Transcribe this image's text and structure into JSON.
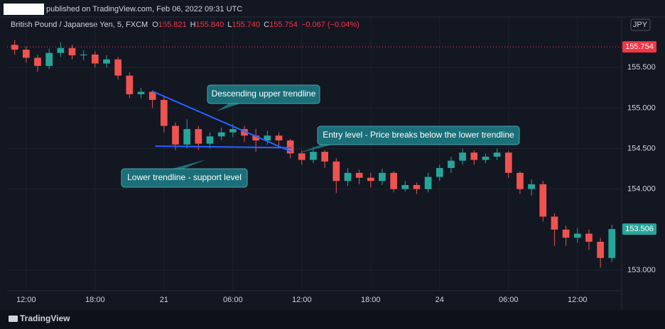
{
  "header": {
    "published": "published on TradingView.com, Feb 06, 2022 09:31 UTC",
    "symbol": "British Pound / Japanese Yen, 5, FXCM",
    "ohlc": [
      {
        "key": "O",
        "value": "155.821"
      },
      {
        "key": "H",
        "value": "155.840"
      },
      {
        "key": "L",
        "value": "155.740"
      },
      {
        "key": "C",
        "value": "155.754"
      }
    ],
    "change": "−0.067 (−0.04%)"
  },
  "footer": {
    "brand": "TradingView"
  },
  "chart_data": {
    "type": "candlestick",
    "currency": "JPY",
    "x": [
      -1,
      0,
      1,
      2,
      3,
      4,
      5,
      6,
      7,
      8,
      9,
      10,
      11,
      12,
      13,
      14,
      15,
      16,
      17,
      18,
      19,
      20,
      21,
      22,
      23,
      24,
      25,
      26,
      27,
      28,
      29,
      30,
      31,
      32,
      33,
      34,
      35,
      36,
      37,
      38,
      39,
      40,
      41,
      42,
      43,
      44,
      45,
      46,
      47,
      48,
      49,
      50,
      51
    ],
    "open": [
      155.78,
      155.72,
      155.62,
      155.52,
      155.68,
      155.74,
      155.65,
      155.66,
      155.55,
      155.6,
      155.4,
      155.17,
      155.2,
      155.1,
      154.78,
      154.55,
      154.74,
      154.56,
      154.65,
      154.7,
      154.74,
      154.66,
      154.6,
      154.66,
      154.6,
      154.44,
      154.36,
      154.46,
      154.34,
      154.1,
      154.2,
      154.14,
      154.1,
      154.2,
      154.0,
      154.05,
      154.0,
      154.15,
      154.26,
      154.35,
      154.45,
      154.36,
      154.4,
      154.45,
      154.2,
      154.0,
      154.06,
      153.66,
      153.5,
      153.4,
      153.45,
      153.35,
      153.15
    ],
    "high": [
      155.84,
      155.76,
      155.66,
      155.73,
      155.81,
      155.78,
      155.71,
      155.7,
      155.65,
      155.63,
      155.44,
      155.25,
      155.22,
      155.14,
      154.82,
      154.86,
      154.78,
      154.7,
      154.76,
      154.8,
      154.78,
      154.74,
      154.72,
      154.7,
      154.62,
      154.48,
      154.52,
      154.48,
      154.38,
      154.26,
      154.24,
      154.2,
      154.25,
      154.22,
      154.1,
      154.08,
      154.2,
      154.3,
      154.4,
      154.5,
      154.48,
      154.44,
      154.5,
      154.47,
      154.22,
      154.12,
      154.1,
      153.7,
      153.55,
      153.52,
      153.5,
      153.4,
      153.56
    ],
    "low": [
      155.66,
      155.56,
      155.45,
      155.48,
      155.63,
      155.6,
      155.59,
      155.5,
      155.5,
      155.35,
      155.12,
      155.12,
      155.0,
      154.7,
      154.48,
      154.5,
      154.48,
      154.5,
      154.6,
      154.64,
      154.58,
      154.46,
      154.55,
      154.54,
      154.38,
      154.3,
      154.32,
      154.26,
      153.95,
      154.04,
      154.06,
      154.02,
      154.05,
      153.96,
      153.97,
      153.94,
      153.96,
      154.1,
      154.2,
      154.3,
      154.3,
      154.32,
      154.36,
      154.14,
      153.94,
      153.92,
      153.6,
      153.3,
      153.3,
      153.34,
      153.25,
      153.03,
      153.1
    ],
    "close": [
      155.72,
      155.62,
      155.52,
      155.68,
      155.74,
      155.65,
      155.66,
      155.55,
      155.6,
      155.4,
      155.17,
      155.2,
      155.1,
      154.78,
      154.55,
      154.74,
      154.56,
      154.65,
      154.7,
      154.74,
      154.66,
      154.6,
      154.66,
      154.6,
      154.44,
      154.36,
      154.46,
      154.34,
      154.1,
      154.2,
      154.14,
      154.1,
      154.2,
      154.0,
      154.05,
      154.0,
      154.15,
      154.26,
      154.35,
      154.45,
      154.36,
      154.4,
      154.45,
      154.2,
      154.0,
      154.06,
      153.66,
      153.5,
      153.4,
      153.45,
      153.35,
      153.15,
      153.506
    ],
    "up_color": "#26a69a",
    "down_color": "#ef5350",
    "xlim": [
      -1.66,
      51.85
    ],
    "ylim": [
      152.746,
      156.123
    ],
    "xticks": [
      {
        "value": 0,
        "label": "12:00"
      },
      {
        "value": 6,
        "label": "18:00"
      },
      {
        "value": 12,
        "label": "21"
      },
      {
        "value": 18,
        "label": "06:00"
      },
      {
        "value": 24,
        "label": "12:00"
      },
      {
        "value": 30,
        "label": "18:00"
      },
      {
        "value": 36,
        "label": "24"
      },
      {
        "value": 42,
        "label": "06:00"
      },
      {
        "value": 48,
        "label": "12:00"
      }
    ],
    "yticks": [
      {
        "value": 153,
        "label": "153.000"
      },
      {
        "value": 154,
        "label": "154.000"
      },
      {
        "value": 154.5,
        "label": "154.500"
      },
      {
        "value": 155,
        "label": "155.000"
      },
      {
        "value": 155.5,
        "label": "155.500"
      }
    ],
    "grid": true,
    "price_line": {
      "value": 155.754,
      "color": "#f23645"
    },
    "last_price": {
      "value": 153.506,
      "color": "#26a69a"
    },
    "trendlines": [
      {
        "x": [
          10.94,
          23.1
        ],
        "values": [
          155.21,
          154.46
        ],
        "color": "#2962ff"
      },
      {
        "x": [
          11.25,
          23.1
        ],
        "values": [
          154.53,
          154.51
        ],
        "color": "#2962ff"
      }
    ],
    "annotations": [
      "Descending upper trendline",
      "Entry level - Price breaks below the lower trendline",
      "Lower trendline - support level"
    ]
  }
}
